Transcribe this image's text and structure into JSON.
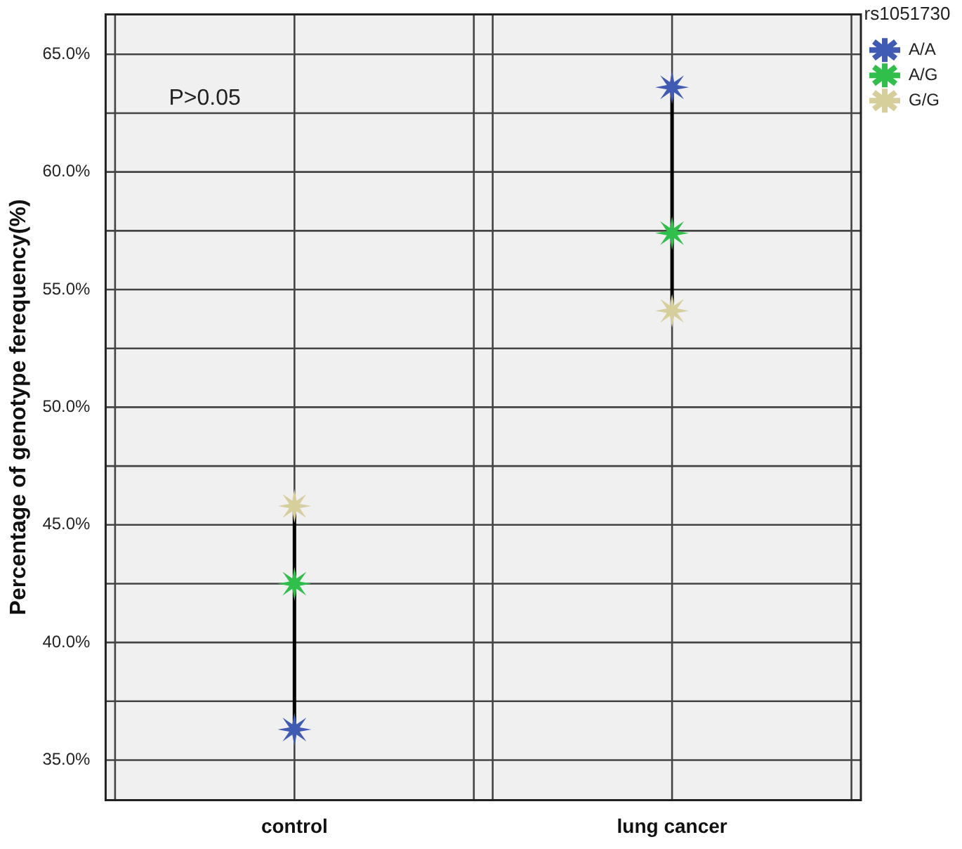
{
  "chart_data": {
    "type": "scatter",
    "ylabel": "Percentage of genotype ferequency(%)",
    "legend_title": "rs1051730",
    "categories": [
      "control",
      "lung cancer"
    ],
    "series": [
      {
        "name": "A/A",
        "color": "#3f5bb4",
        "values": [
          36.3,
          63.6
        ]
      },
      {
        "name": "A/G",
        "color": "#2fbf4a",
        "values": [
          42.5,
          57.4
        ]
      },
      {
        "name": "G/G",
        "color": "#d6cf9c",
        "values": [
          45.8,
          54.1
        ]
      }
    ],
    "ylim": [
      33.3,
      66.7
    ],
    "yticks": [
      {
        "value": 35,
        "label": "35.0%"
      },
      {
        "value": 37.5,
        "label": null
      },
      {
        "value": 40,
        "label": "40.0%"
      },
      {
        "value": 42.5,
        "label": null
      },
      {
        "value": 45,
        "label": "45.0%"
      },
      {
        "value": 47.5,
        "label": null
      },
      {
        "value": 50,
        "label": "50.0%"
      },
      {
        "value": 52.5,
        "label": null
      },
      {
        "value": 55,
        "label": "55.0%"
      },
      {
        "value": 57.5,
        "label": null
      },
      {
        "value": 60,
        "label": "60.0%"
      },
      {
        "value": 62.5,
        "label": null
      },
      {
        "value": 65,
        "label": "65.0%"
      }
    ],
    "annotations": [
      "P>0.05"
    ],
    "grid": true,
    "legend": "top right",
    "marker": "star"
  }
}
